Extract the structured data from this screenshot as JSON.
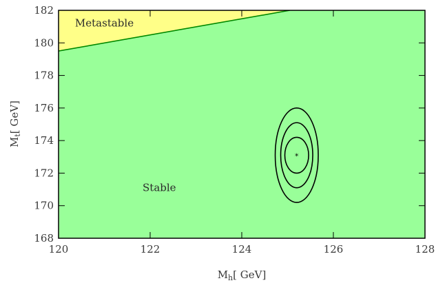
{
  "chart_data": {
    "type": "contour",
    "xlabel": {
      "main": "M",
      "sub": "h",
      "unit": "[ GeV]"
    },
    "ylabel": {
      "main": "M",
      "sub": "t",
      "unit": "[ GeV]"
    },
    "xlim": [
      120,
      128
    ],
    "ylim": [
      168,
      182
    ],
    "xticks": [
      120,
      122,
      124,
      126,
      128
    ],
    "yticks": [
      168,
      170,
      172,
      174,
      176,
      178,
      180,
      182
    ],
    "regions": [
      {
        "name": "Stable",
        "color": "#99ff99",
        "label_pos": [
          122.2,
          170.9
        ]
      },
      {
        "name": "Metastable",
        "color": "#ffff88",
        "label_pos": [
          121.0,
          181.0
        ]
      }
    ],
    "boundary_line": {
      "color": "#008800",
      "points": [
        [
          120,
          179.5
        ],
        [
          125.05,
          182
        ]
      ]
    },
    "central_value": {
      "x": 125.2,
      "y": 173.1,
      "marker": "*"
    },
    "ellipses": [
      {
        "rx": 0.26,
        "ry": 1.1
      },
      {
        "rx": 0.35,
        "ry": 2.0
      },
      {
        "rx": 0.47,
        "ry": 2.9
      }
    ],
    "grid": false
  }
}
